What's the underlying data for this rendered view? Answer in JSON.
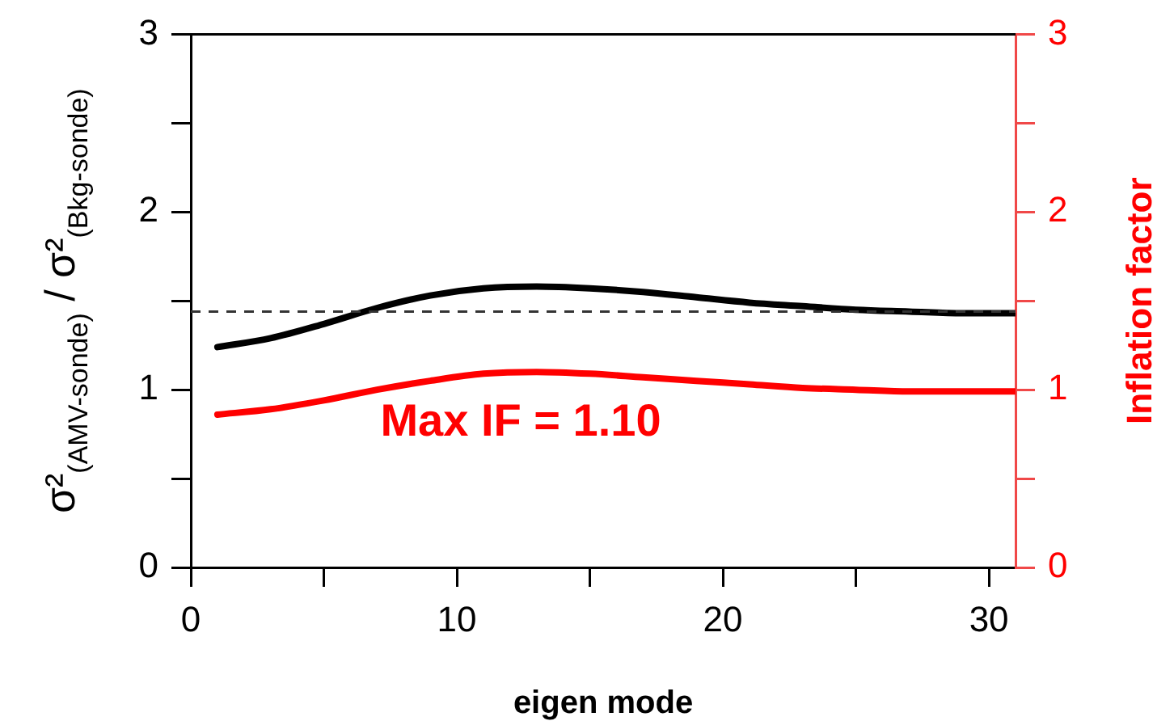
{
  "chart_data": {
    "type": "line",
    "xlabel": "eigen mode",
    "ylabel": "σ²$_{(AMV-sonde)}$ / σ²$_{(Bkg-sonde)}$",
    "y2label": "Inflation factor",
    "x": [
      1,
      3,
      5,
      7,
      9,
      11,
      13,
      15,
      17,
      19,
      21,
      23,
      25,
      27,
      29,
      31
    ],
    "series": [
      {
        "color": "#000000",
        "values": [
          1.24,
          1.29,
          1.37,
          1.46,
          1.53,
          1.57,
          1.58,
          1.57,
          1.55,
          1.52,
          1.49,
          1.47,
          1.45,
          1.44,
          1.43,
          1.43
        ]
      },
      {
        "color": "#ff0000",
        "axis": "y2",
        "values": [
          0.86,
          0.89,
          0.94,
          1.0,
          1.05,
          1.09,
          1.1,
          1.09,
          1.07,
          1.05,
          1.03,
          1.01,
          1.0,
          0.99,
          0.99,
          0.99
        ]
      }
    ],
    "xlim": [
      0,
      31
    ],
    "xticks": [
      0,
      {
        "value": 5,
        "label": null
      },
      10,
      {
        "value": 15,
        "label": null
      },
      20,
      {
        "value": 25,
        "label": null
      },
      30
    ],
    "ylim": [
      0,
      3
    ],
    "yticks": [
      0,
      {
        "value": 0.5,
        "label": null
      },
      1,
      {
        "value": 1.5,
        "label": null
      },
      2,
      {
        "value": 2.5,
        "label": null
      },
      3
    ],
    "y2lim": [
      0,
      3
    ],
    "y2ticks": [
      0,
      {
        "value": 0.5,
        "label": null
      },
      1,
      {
        "value": 1.5,
        "label": null
      },
      2,
      {
        "value": 2.5,
        "label": null
      },
      3
    ],
    "ref_lines": [
      {
        "axis": "y",
        "value": 1.44,
        "color": "#333333",
        "line_style": "dashed"
      }
    ],
    "annotations": [
      "Max IF = 1.10"
    ],
    "grid": false,
    "legend": false,
    "marker": "none",
    "line_style": "solid"
  }
}
